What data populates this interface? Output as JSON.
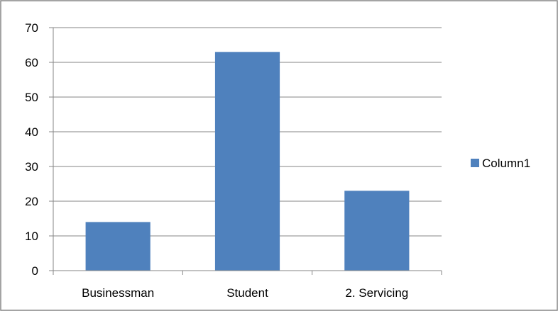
{
  "chart_data": {
    "type": "bar",
    "title": "",
    "xlabel": "",
    "ylabel": "",
    "categories": [
      "Businessman",
      "Student",
      "2. Servicing"
    ],
    "series": [
      {
        "name": "Column1",
        "values": [
          14,
          63,
          23
        ],
        "color": "#4f81bd"
      }
    ],
    "ylim": [
      0,
      70
    ],
    "yticks": [
      0,
      10,
      20,
      30,
      40,
      50,
      60,
      70
    ],
    "ytick_labels": [
      "0",
      "10",
      "20",
      "30",
      "40",
      "50",
      "60",
      "70"
    ],
    "grid": true,
    "legend": {
      "position": "right",
      "entries": [
        "Column1"
      ]
    },
    "colors": {
      "gridline": "#868686",
      "axis": "#868686",
      "frame": "#868686"
    }
  }
}
